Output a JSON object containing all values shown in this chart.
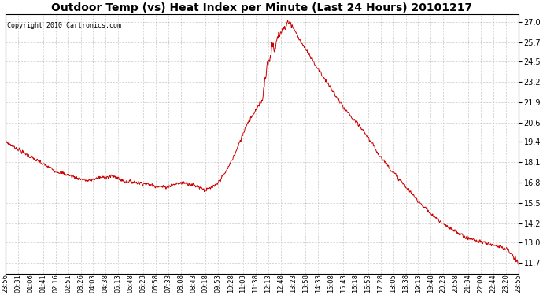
{
  "title": "Outdoor Temp (vs) Heat Index per Minute (Last 24 Hours) 20101217",
  "copyright": "Copyright 2010 Cartronics.com",
  "line_color": "#cc0000",
  "bg_color": "#ffffff",
  "grid_color": "#b0b0b0",
  "ylim": [
    11.0,
    27.5
  ],
  "yticks": [
    11.7,
    13.0,
    14.2,
    15.5,
    16.8,
    18.1,
    19.4,
    20.6,
    21.9,
    23.2,
    24.5,
    25.7,
    27.0
  ],
  "xtick_labels": [
    "23:56",
    "00:31",
    "01:06",
    "01:41",
    "02:16",
    "02:51",
    "03:26",
    "04:03",
    "04:38",
    "05:13",
    "05:48",
    "06:23",
    "06:58",
    "07:33",
    "08:08",
    "08:43",
    "09:18",
    "09:53",
    "10:28",
    "11:03",
    "11:38",
    "12:13",
    "12:48",
    "13:23",
    "13:58",
    "14:33",
    "15:08",
    "15:43",
    "16:18",
    "16:53",
    "17:28",
    "18:05",
    "18:38",
    "19:13",
    "19:48",
    "20:23",
    "20:58",
    "21:34",
    "22:09",
    "22:44",
    "23:20",
    "23:55"
  ],
  "title_fontsize": 10,
  "copyright_fontsize": 6,
  "tick_fontsize": 6,
  "ytick_fontsize": 7,
  "curve_keypoints": [
    [
      0.0,
      19.4
    ],
    [
      0.02,
      19.0
    ],
    [
      0.06,
      18.2
    ],
    [
      0.1,
      17.5
    ],
    [
      0.14,
      17.1
    ],
    [
      0.16,
      16.9
    ],
    [
      0.18,
      17.1
    ],
    [
      0.21,
      17.2
    ],
    [
      0.23,
      16.9
    ],
    [
      0.26,
      16.8
    ],
    [
      0.29,
      16.6
    ],
    [
      0.31,
      16.5
    ],
    [
      0.33,
      16.7
    ],
    [
      0.35,
      16.8
    ],
    [
      0.38,
      16.5
    ],
    [
      0.39,
      16.3
    ],
    [
      0.41,
      16.6
    ],
    [
      0.43,
      17.5
    ],
    [
      0.45,
      18.8
    ],
    [
      0.47,
      20.5
    ],
    [
      0.49,
      21.5
    ],
    [
      0.5,
      22.0
    ],
    [
      0.51,
      24.3
    ],
    [
      0.515,
      24.6
    ],
    [
      0.52,
      25.6
    ],
    [
      0.525,
      25.2
    ],
    [
      0.53,
      26.0
    ],
    [
      0.535,
      26.3
    ],
    [
      0.54,
      26.5
    ],
    [
      0.545,
      26.7
    ],
    [
      0.548,
      26.9
    ],
    [
      0.552,
      27.0
    ],
    [
      0.556,
      26.9
    ],
    [
      0.56,
      26.7
    ],
    [
      0.565,
      26.4
    ],
    [
      0.575,
      25.8
    ],
    [
      0.6,
      24.5
    ],
    [
      0.63,
      23.0
    ],
    [
      0.66,
      21.5
    ],
    [
      0.7,
      20.0
    ],
    [
      0.73,
      18.5
    ],
    [
      0.76,
      17.3
    ],
    [
      0.8,
      15.8
    ],
    [
      0.83,
      14.8
    ],
    [
      0.86,
      14.0
    ],
    [
      0.9,
      13.3
    ],
    [
      0.93,
      13.0
    ],
    [
      0.96,
      12.8
    ],
    [
      0.98,
      12.5
    ],
    [
      1.0,
      11.7
    ]
  ]
}
